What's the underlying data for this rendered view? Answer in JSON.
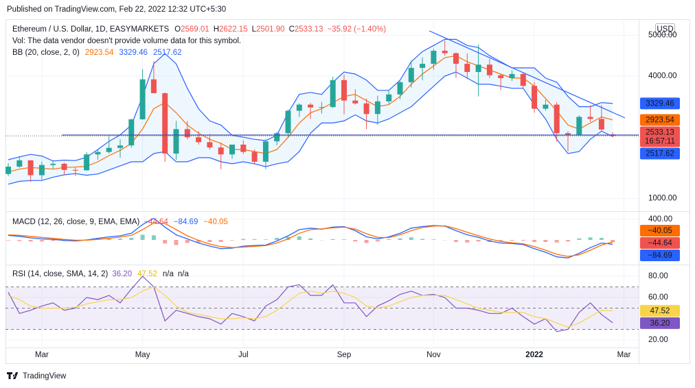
{
  "header": {
    "published": "Published on TradingView.com, Feb 22, 2022 12:32 UTC+5:30",
    "logo": "TradingView"
  },
  "chart_data": [
    {
      "type": "candlestick",
      "title": "Ethereum / U.S. Dollar, 1D, EASYMARKETS",
      "ohlc_legend": [
        {
          "key": "O",
          "text": "2569.01"
        },
        {
          "key": "H",
          "text": "2622.15"
        },
        {
          "key": "L",
          "text": "2501.90"
        },
        {
          "key": "C",
          "text": "2533.13"
        },
        {
          "key": "",
          "text": "−35.92 (−1.40%)"
        }
      ],
      "note": "Vol: The data vendor doesn't provide volume data for this symbol.",
      "currency": "USD",
      "indicator": "BB (20, close, 2, 0)",
      "up_color": "#26a69a",
      "down_color": "#ef5350",
      "open": [
        1600,
        1780,
        1935,
        1570,
        1820,
        1850,
        1700,
        1690,
        2080,
        2140,
        2240,
        2300,
        2940,
        3920,
        3580,
        2100,
        2700,
        2500,
        2380,
        2250,
        2080,
        2320,
        2140,
        1900,
        2400,
        2600,
        3150,
        3300,
        3230,
        3240,
        3900,
        3400,
        3330,
        3070,
        3380,
        3550,
        3850,
        4200,
        4300,
        4620,
        4560,
        4300,
        4100,
        4280,
        4020,
        3950,
        4050,
        3760,
        3200,
        3300,
        2600,
        2560,
        3000,
        2950,
        2569.01,
        null,
        null
      ],
      "high": [
        1870,
        2040,
        1940,
        1900,
        1940,
        1880,
        1760,
        2140,
        2200,
        2550,
        2450,
        2950,
        4170,
        4370,
        3600,
        2900,
        2900,
        2650,
        2580,
        2370,
        2320,
        2420,
        2200,
        2450,
        2630,
        3180,
        3330,
        3340,
        3370,
        3980,
        4030,
        3680,
        3450,
        3520,
        3650,
        3880,
        4380,
        4460,
        4670,
        4870,
        4580,
        4560,
        4780,
        4420,
        4050,
        4140,
        4100,
        3850,
        3420,
        3360,
        2650,
        3040,
        3280,
        3290,
        2622.15,
        null,
        null
      ],
      "low": [
        1550,
        1750,
        1400,
        1460,
        1730,
        1580,
        1550,
        1680,
        1950,
        2100,
        2000,
        2250,
        2930,
        3600,
        1900,
        1950,
        2450,
        2320,
        2200,
        1720,
        1970,
        2090,
        1860,
        1720,
        2300,
        2480,
        3000,
        2950,
        3080,
        3220,
        3060,
        3300,
        2700,
        2800,
        3300,
        3430,
        3720,
        3900,
        4160,
        4500,
        3960,
        3920,
        3500,
        3950,
        3650,
        3880,
        3700,
        3100,
        3150,
        2400,
        2160,
        2540,
        2880,
        2650,
        2501.9,
        null,
        null
      ],
      "close": [
        1780,
        1935,
        1570,
        1820,
        1850,
        1700,
        1690,
        2080,
        2140,
        2240,
        2300,
        2940,
        3920,
        3580,
        2100,
        2700,
        2500,
        2380,
        2250,
        2080,
        2320,
        2140,
        1900,
        2400,
        2600,
        3150,
        3300,
        3230,
        3240,
        3900,
        3400,
        3330,
        3070,
        3380,
        3550,
        3850,
        4200,
        4300,
        4620,
        4560,
        4300,
        4100,
        4280,
        4020,
        3950,
        4050,
        3760,
        3200,
        3300,
        2600,
        2560,
        3000,
        2950,
        2690,
        2533.13,
        null,
        null
      ],
      "close_label": "2533.13",
      "countdown": "16:57:11",
      "series": [
        {
          "color": "#ff6d00",
          "last_label": "2923.54",
          "values": [
            1650,
            1720,
            1760,
            1740,
            1720,
            1760,
            1770,
            1790,
            1900,
            2050,
            2180,
            2350,
            2700,
            3200,
            3350,
            3100,
            2800,
            2600,
            2450,
            2350,
            2200,
            2200,
            2150,
            2100,
            2200,
            2500,
            2850,
            3100,
            3200,
            3350,
            3500,
            3550,
            3400,
            3250,
            3300,
            3500,
            3800,
            4050,
            4250,
            4450,
            4500,
            4350,
            4250,
            4150,
            4050,
            3950,
            3950,
            3750,
            3450,
            3150,
            2800,
            2700,
            2850,
            3000,
            2923.54,
            null,
            null
          ]
        },
        {
          "color": "#2962ff",
          "last_label": "3329.46",
          "values": [
            1950,
            2020,
            2080,
            2040,
            1920,
            1940,
            1930,
            2010,
            2200,
            2400,
            2560,
            2800,
            3500,
            4300,
            4550,
            4300,
            3700,
            3200,
            2900,
            2800,
            2550,
            2500,
            2450,
            2420,
            2550,
            3100,
            3550,
            3600,
            3550,
            3850,
            4100,
            4050,
            3900,
            3650,
            3650,
            3900,
            4350,
            4600,
            4750,
            4900,
            4900,
            4750,
            4700,
            4500,
            4350,
            4200,
            4200,
            4200,
            3950,
            3850,
            3500,
            3250,
            3250,
            3350,
            3329.46,
            null,
            null
          ]
        },
        {
          "color": "#2962ff",
          "last_label": "2517.62",
          "values": [
            1350,
            1420,
            1440,
            1440,
            1520,
            1580,
            1610,
            1570,
            1600,
            1700,
            1800,
            1900,
            1900,
            2100,
            2150,
            1900,
            1900,
            2000,
            2000,
            1900,
            1850,
            1900,
            1850,
            1780,
            1850,
            1900,
            2150,
            2600,
            2850,
            2850,
            2900,
            3050,
            2900,
            2850,
            2950,
            3100,
            3250,
            3500,
            3750,
            4000,
            4100,
            3950,
            3800,
            3800,
            3750,
            3700,
            3700,
            3300,
            2950,
            2450,
            2100,
            2150,
            2450,
            2650,
            2517.62,
            null,
            null
          ]
        }
      ],
      "ylim": [
        740,
        5360
      ],
      "yticks": [
        {
          "value": 1000,
          "label": "1000.00"
        },
        {
          "value": 4000,
          "label": "4000.00"
        },
        {
          "value": 5000,
          "label": "5000.00"
        }
      ],
      "grid": true
    },
    {
      "type": "macd",
      "title": "MACD (12, 26, close, 9, EMA, EMA)",
      "histogram": {
        "color": "#ef5350",
        "up_color": "#7fcfc3",
        "down_color": "#f5a3a1",
        "last_label": "−44.64",
        "values": [
          -10,
          -20,
          -30,
          -30,
          -20,
          -20,
          -15,
          5,
          20,
          30,
          25,
          40,
          100,
          90,
          -70,
          -100,
          -60,
          -50,
          -40,
          -40,
          -10,
          20,
          15,
          10,
          40,
          60,
          70,
          30,
          -5,
          15,
          10,
          -30,
          -60,
          -30,
          15,
          30,
          50,
          20,
          10,
          -5,
          -40,
          -50,
          -30,
          -40,
          -30,
          -15,
          -15,
          -40,
          -40,
          -50,
          -30,
          30,
          50,
          40,
          -44.64,
          null,
          null
        ]
      },
      "series": [
        {
          "color": "#2962ff",
          "last_label": "−84.69",
          "values": [
            90,
            70,
            40,
            20,
            10,
            -10,
            -20,
            0,
            30,
            60,
            80,
            130,
            300,
            420,
            250,
            100,
            20,
            -60,
            -120,
            -170,
            -160,
            -120,
            -110,
            -100,
            -20,
            80,
            200,
            230,
            210,
            250,
            260,
            180,
            60,
            20,
            60,
            130,
            230,
            260,
            280,
            270,
            180,
            100,
            50,
            -20,
            -60,
            -70,
            -90,
            -170,
            -240,
            -330,
            -350,
            -260,
            -150,
            -60,
            -84.69,
            null,
            null
          ]
        },
        {
          "color": "#ff6d00",
          "last_label": "−40.05",
          "values": [
            100,
            90,
            70,
            50,
            30,
            10,
            -5,
            -5,
            10,
            30,
            55,
            90,
            200,
            330,
            320,
            200,
            80,
            -10,
            -80,
            -130,
            -150,
            -140,
            -125,
            -110,
            -60,
            20,
            130,
            200,
            215,
            235,
            250,
            210,
            120,
            50,
            45,
            100,
            180,
            240,
            270,
            275,
            220,
            150,
            80,
            20,
            -30,
            -55,
            -75,
            -130,
            -200,
            -280,
            -320,
            -290,
            -200,
            -100,
            -40.05,
            null,
            null
          ]
        }
      ],
      "ylim": [
        -427,
        507
      ],
      "yticks": [
        {
          "value": 400,
          "label": "400.00"
        }
      ],
      "grid": true
    },
    {
      "type": "rsi",
      "title": "RSI (14, close, SMA, 14, 2)",
      "legend_extra": [
        "n/a",
        "n/a"
      ],
      "levels": [
        70,
        50,
        30
      ],
      "band_color": "rgba(126,87,194,0.1)",
      "series": [
        {
          "color": "#7e57c2",
          "text_color": "#ffffff",
          "last_label": "36.20",
          "values": [
            65,
            45,
            48,
            52,
            55,
            48,
            50,
            60,
            58,
            62,
            55,
            68,
            80,
            70,
            38,
            48,
            45,
            42,
            40,
            35,
            45,
            42,
            38,
            52,
            58,
            70,
            72,
            62,
            62,
            72,
            55,
            55,
            42,
            52,
            57,
            63,
            66,
            62,
            63,
            60,
            50,
            50,
            48,
            45,
            45,
            50,
            42,
            35,
            40,
            28,
            30,
            46,
            55,
            44,
            36.2,
            null,
            null
          ]
        },
        {
          "color": "#f7d44a",
          "text_color": "#131722",
          "last_label": "47.52",
          "values": [
            62,
            58,
            52,
            50,
            50,
            50,
            51,
            54,
            56,
            58,
            58,
            60,
            66,
            70,
            62,
            52,
            46,
            44,
            42,
            40,
            40,
            41,
            40,
            42,
            48,
            56,
            64,
            66,
            64,
            66,
            64,
            60,
            52,
            50,
            52,
            56,
            60,
            62,
            62,
            62,
            58,
            54,
            50,
            48,
            46,
            46,
            46,
            42,
            40,
            36,
            32,
            36,
            42,
            48,
            47.52,
            null,
            null
          ]
        }
      ],
      "categories": [
        null,
        null,
        null,
        "Mar",
        null,
        null,
        null,
        null,
        null,
        null,
        null,
        null,
        "May",
        null,
        null,
        null,
        null,
        null,
        null,
        null,
        null,
        "Jul",
        null,
        null,
        null,
        null,
        null,
        null,
        null,
        null,
        "Sep",
        null,
        null,
        null,
        null,
        null,
        null,
        null,
        "Nov",
        null,
        null,
        null,
        null,
        null,
        null,
        null,
        null,
        "2022",
        null,
        null,
        null,
        null,
        null,
        null,
        null,
        "Mar",
        null
      ],
      "ylim": [
        14.2,
        88.4
      ],
      "yticks": [
        {
          "value": 80,
          "label": "80.00"
        },
        {
          "value": 60,
          "label": "60.00"
        },
        {
          "value": 20,
          "label": "20.00"
        }
      ],
      "grid": true
    }
  ]
}
